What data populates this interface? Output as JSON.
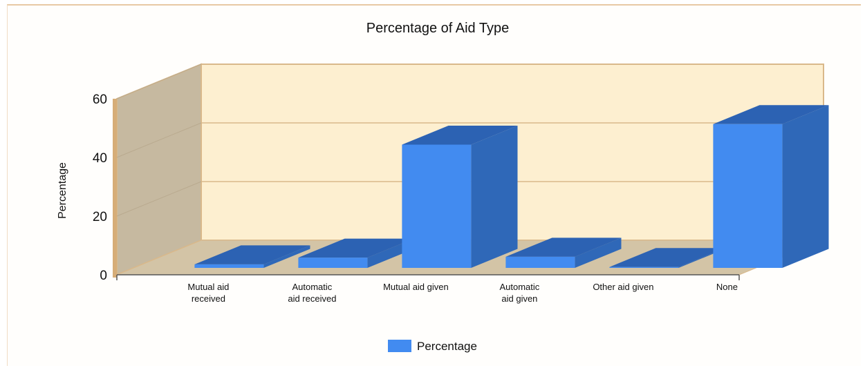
{
  "chart_data": {
    "type": "bar",
    "title": "Percentage of Aid Type",
    "xlabel": "",
    "ylabel": "Percentage",
    "ylim": [
      0,
      60
    ],
    "yticks": [
      0,
      20,
      40,
      60
    ],
    "grid": true,
    "legend_position": "bottom",
    "categories": [
      [
        "Mutual aid",
        "received"
      ],
      [
        "Automatic",
        "aid received"
      ],
      [
        "Mutual aid given"
      ],
      [
        "Automatic",
        "aid given"
      ],
      [
        "Other aid given"
      ],
      [
        "None"
      ]
    ],
    "series": [
      {
        "name": "Percentage",
        "values": [
          1.2,
          3.5,
          42.0,
          3.8,
          0.3,
          49.0
        ]
      }
    ],
    "colors": {
      "bar_front": "#428bf0",
      "bar_side": "#2f68b8",
      "bar_top": "#2c62b3",
      "back_wall": "#fdefd0",
      "side_wall": "#c6b9a0",
      "floor": "#d3c4a6",
      "wall_edge": "#d9b88a",
      "frame_border": "#e8c9a4"
    }
  }
}
